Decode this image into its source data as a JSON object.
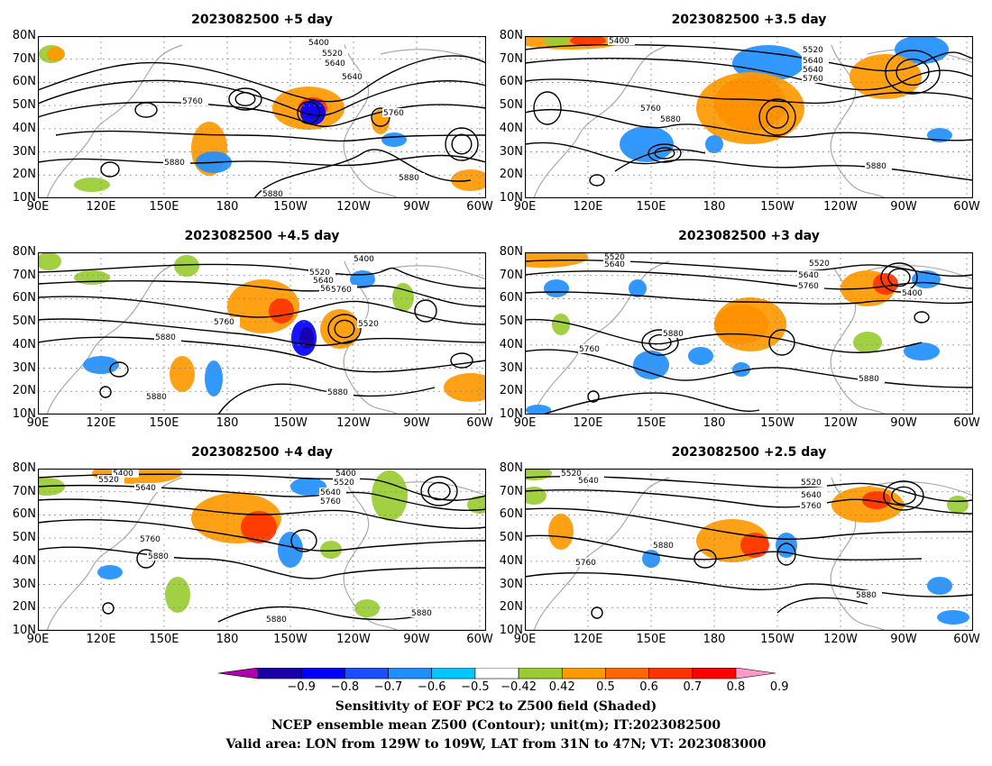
{
  "panels": [
    {
      "title": "2023082500  +5  day",
      "labels": [
        "5400",
        "5520",
        "5640",
        "5640",
        "5760",
        "5760",
        "5880",
        "5880",
        "5880"
      ]
    },
    {
      "title": "2023082500  +3.5  day",
      "labels": [
        "5400",
        "5520",
        "5640",
        "5640",
        "5760",
        "5760",
        "5880",
        "5880"
      ]
    },
    {
      "title": "2023082500  +4.5  day",
      "labels": [
        "5400",
        "5520",
        "5640",
        "5640",
        "5760",
        "5760",
        "5520",
        "5880",
        "5880",
        "5880"
      ]
    },
    {
      "title": "2023082500  +3  day",
      "labels": [
        "5520",
        "5640",
        "5520",
        "5640",
        "5760",
        "5400",
        "5880",
        "5760",
        "5880"
      ]
    },
    {
      "title": "2023082500  +4  day",
      "labels": [
        "5400",
        "5520",
        "5640",
        "5400",
        "5520",
        "5640",
        "5760",
        "5760",
        "5880",
        "5880",
        "5880"
      ]
    },
    {
      "title": "2023082500  +2.5  day",
      "labels": [
        "5520",
        "5640",
        "5520",
        "5640",
        "5760",
        "5880",
        "5760",
        "5880"
      ]
    }
  ],
  "lat_ticks": [
    "80N",
    "70N",
    "60N",
    "50N",
    "40N",
    "30N",
    "20N",
    "10N"
  ],
  "lon_ticks": [
    "90E",
    "120E",
    "150E",
    "180",
    "150W",
    "120W",
    "90W",
    "60W"
  ],
  "colorbar": {
    "ticks": [
      "−0.9",
      "−0.8",
      "−0.7",
      "−0.6",
      "−0.5",
      "−0.42",
      "0.42",
      "0.5",
      "0.6",
      "0.7",
      "0.8",
      "0.9"
    ],
    "colors": [
      "#b000b0",
      "#1a00a8",
      "#0000ff",
      "#1a4fff",
      "#1f8fff",
      "#00c8ff",
      "#ffffff",
      "#99cc33",
      "#ff9900",
      "#ff6600",
      "#ff3300",
      "#ff0000",
      "#ff99cc"
    ]
  },
  "caption": {
    "line1": "Sensitivity of EOF PC2 to Z500 field (Shaded)",
    "line2": "NCEP ensemble mean Z500 (Contour); unit(m); IT:2023082500",
    "line3": "Valid area: LON from 129W to 109W, LAT from 31N to 47N; VT: 2023083000"
  }
}
